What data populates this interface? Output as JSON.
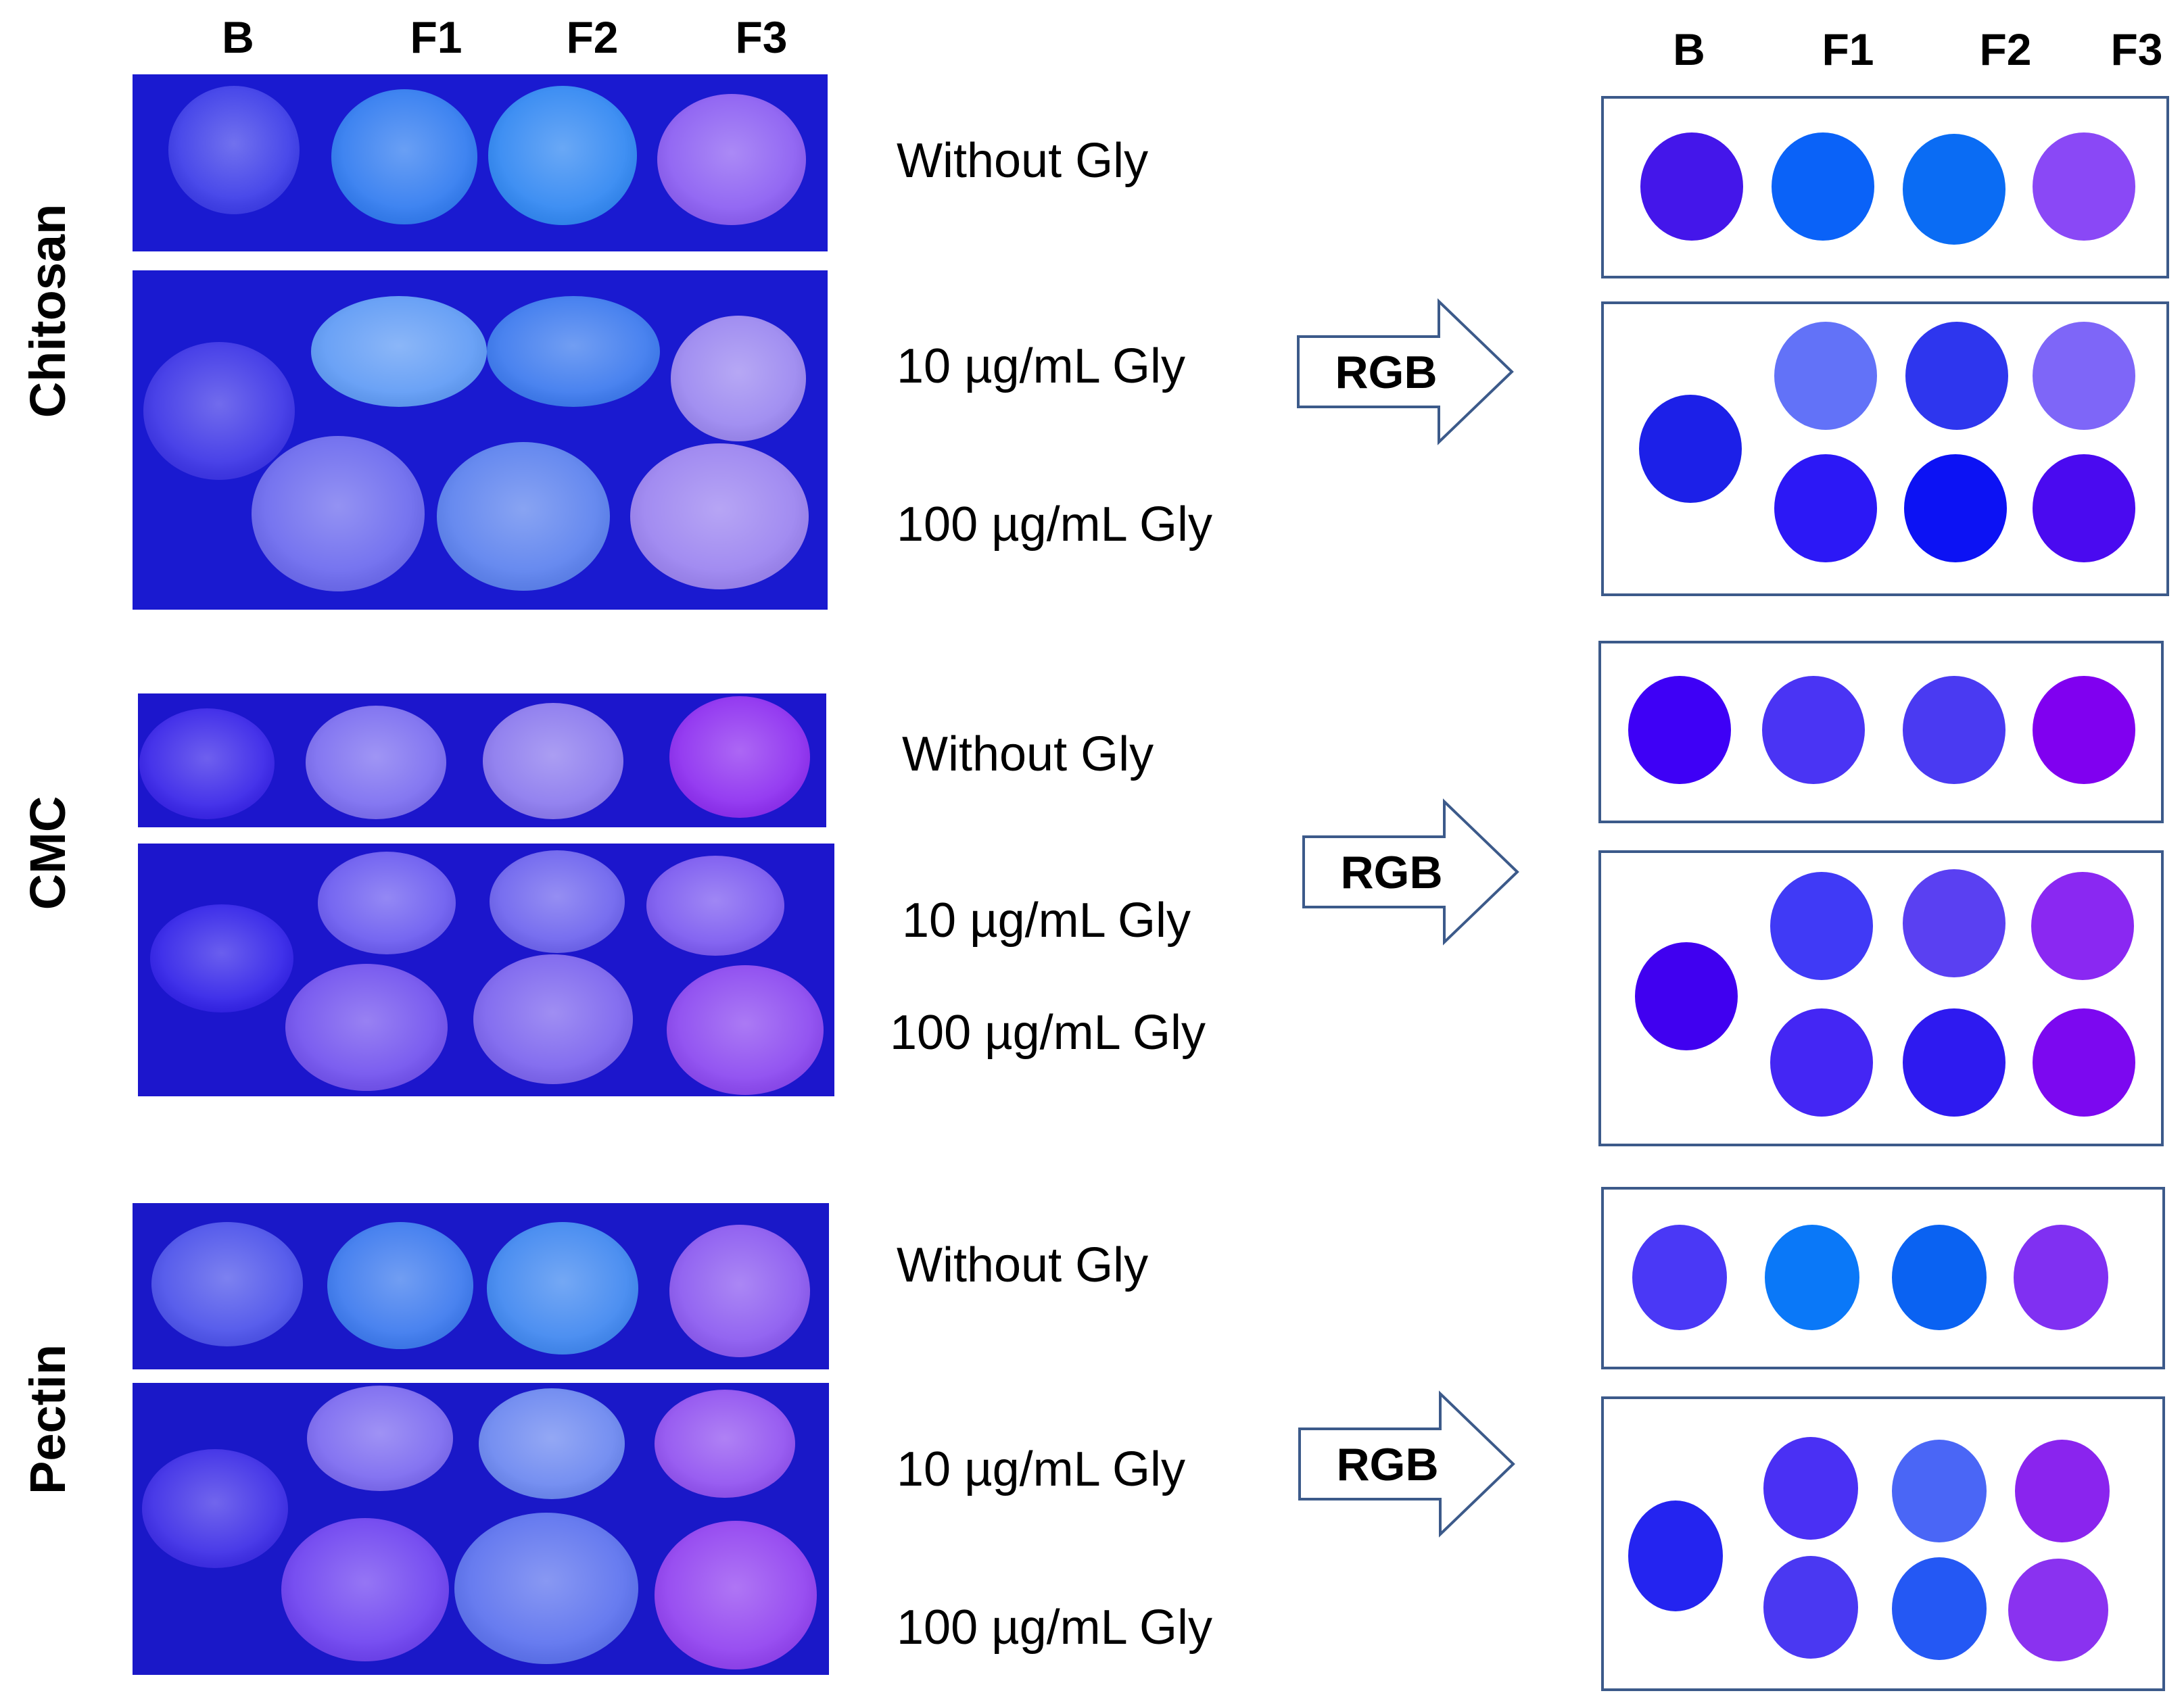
{
  "column_headers": {
    "left": [
      "B",
      "F1",
      "F2",
      "F3"
    ],
    "right": [
      "B",
      "F1",
      "F2",
      "F3"
    ]
  },
  "arrow_label": "RGB",
  "panels": [
    {
      "label": "Chitosan",
      "conditions": [
        "Without Gly",
        "10 µg/mL Gly",
        "100 µg/mL Gly"
      ],
      "photo_background": "#1a1ad0",
      "photo_films": {
        "without": [
          "#3a3ae8",
          "#2f7af0",
          "#2f86f2",
          "#8a5cf2"
        ],
        "glyphosate_10": [
          "#5e9af5",
          "#3a78ee",
          "#9a86f0"
        ],
        "glyphosate_100": [
          "#6a68ee",
          "#5a80ee",
          "#9a82f0"
        ],
        "blank": "#3a32e6"
      },
      "rgb_dots": {
        "without": [
          "#4416ea",
          "#0a62f8",
          "#0a6cf4",
          "#8a48f6"
        ],
        "glyphosate_10": [
          "#6272f8",
          "#2e36ee",
          "#7e66f8"
        ],
        "glyphosate_100": [
          "#2c18f6",
          "#0c12f4",
          "#4a0af0"
        ],
        "blank": "#1c20e8"
      }
    },
    {
      "label": "CMC",
      "conditions": [
        "Without Gly",
        "10 µg/mL Gly",
        "100 µg/mL Gly"
      ],
      "photo_background": "#1c16cc",
      "photo_films": {
        "without": [
          "#3622e8",
          "#7a6cf0",
          "#8a78ee",
          "#8c2cf0"
        ],
        "glyphosate_10": [
          "#6a5af0",
          "#6c62ee",
          "#7a58f0"
        ],
        "glyphosate_100": [
          "#7050ee",
          "#7a62ee",
          "#8a46f0"
        ],
        "blank": "#3020e8"
      },
      "rgb_dots": {
        "without": [
          "#3e00f6",
          "#4a34f4",
          "#4a3af2",
          "#8000f0"
        ],
        "glyphosate_10": [
          "#403af6",
          "#5a40f2",
          "#8a28f2"
        ],
        "glyphosate_100": [
          "#4426f4",
          "#2e1af0",
          "#7c08f0"
        ],
        "blank": "#4000f0"
      }
    },
    {
      "label": "Pectin",
      "conditions": [
        "Without Gly",
        "10 µg/mL Gly",
        "100 µg/mL Gly"
      ],
      "photo_background": "#1a18c8",
      "photo_films": {
        "without": [
          "#4a50ea",
          "#3a78ee",
          "#3e86f0",
          "#8a58f0"
        ],
        "glyphosate_10": [
          "#7a68f0",
          "#6a86f0",
          "#9050f0"
        ],
        "glyphosate_100": [
          "#6c40f0",
          "#5a70ee",
          "#9040f0"
        ],
        "blank": "#3a2ae6"
      },
      "rgb_dots": {
        "without": [
          "#4a38f6",
          "#0a78f8",
          "#0a62f2",
          "#8030f2"
        ],
        "glyphosate_10": [
          "#4a30f4",
          "#4a66f6",
          "#8a24ee"
        ],
        "glyphosate_100": [
          "#4a38f2",
          "#2458f4",
          "#8a32f0"
        ],
        "blank": "#2424f0"
      }
    }
  ]
}
